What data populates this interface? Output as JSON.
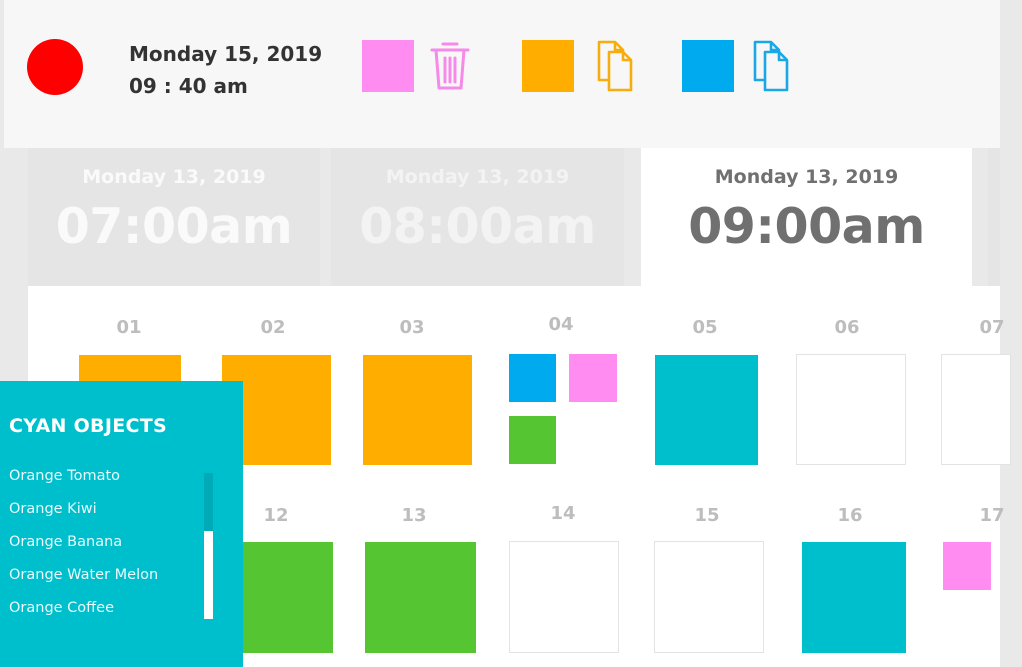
{
  "header": {
    "date": "Monday 15, 2019",
    "time": "09 : 40 am",
    "record_color": "#ff0000",
    "tools": [
      {
        "swatch_color": "#ff8df1",
        "icon": "trash-icon",
        "icon_color": "#f58ae8"
      },
      {
        "swatch_color": "#ffae00",
        "icon": "copy-icon",
        "icon_color": "#f5ad10"
      },
      {
        "swatch_color": "#00aaee",
        "icon": "copy-icon",
        "icon_color": "#1aa7e6"
      }
    ]
  },
  "time_cards": [
    {
      "date": "Monday 13, 2019",
      "time": "07:00am",
      "active": false
    },
    {
      "date": "Monday 13, 2019",
      "time": "08:00am",
      "active": false
    },
    {
      "date": "Monday 13, 2019",
      "time": "09:00am",
      "active": true
    }
  ],
  "grid": {
    "row1_labels": [
      "01",
      "02",
      "03",
      "04",
      "05",
      "06",
      "07"
    ],
    "row2_labels": [
      "12",
      "13",
      "14",
      "15",
      "16",
      "17"
    ],
    "colors": {
      "orange": "#ffae00",
      "cyan": "#00bfcc",
      "green": "#55c632",
      "blue": "#00aaee",
      "pink": "#ff8df1"
    }
  },
  "side_panel": {
    "title": "CYAN OBJECTS",
    "items": [
      "Orange Tomato",
      "Orange Kiwi",
      "Orange Banana",
      "Orange Water Melon",
      "Orange Coffee"
    ]
  }
}
